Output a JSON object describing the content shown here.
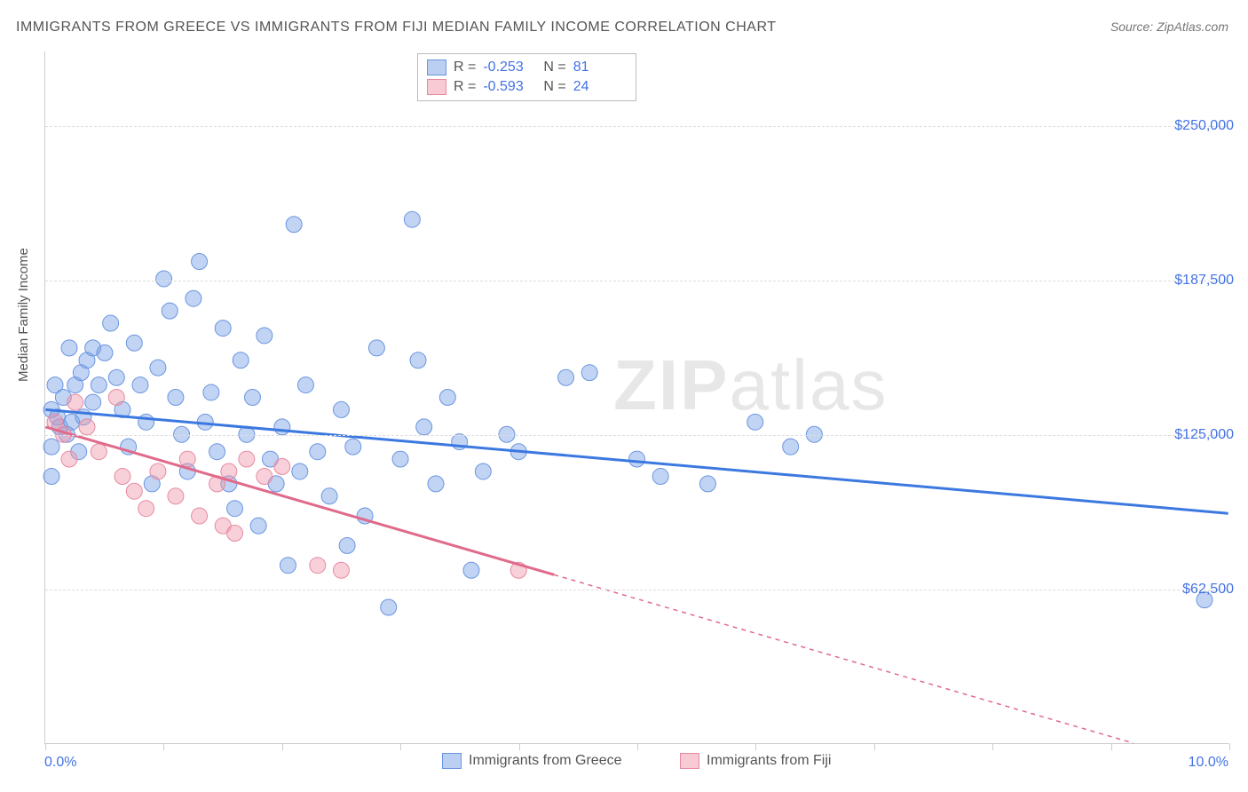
{
  "title": "IMMIGRANTS FROM GREECE VS IMMIGRANTS FROM FIJI MEDIAN FAMILY INCOME CORRELATION CHART",
  "source": "Source: ZipAtlas.com",
  "y_axis_label": "Median Family Income",
  "watermark": {
    "part1": "ZIP",
    "part2": "atlas"
  },
  "chart": {
    "type": "scatter",
    "xlim": [
      0,
      10
    ],
    "ylim": [
      0,
      280000
    ],
    "x_ticks": [
      0,
      1,
      2,
      3,
      4,
      5,
      6,
      7,
      8,
      9,
      10
    ],
    "x_tick_labels": {
      "0": "0.0%",
      "10": "10.0%"
    },
    "y_gridlines": [
      62500,
      125000,
      187500,
      250000
    ],
    "y_tick_labels": [
      "$62,500",
      "$125,000",
      "$187,500",
      "$250,000"
    ],
    "background_color": "#ffffff",
    "grid_color": "#dddddd",
    "axis_color": "#cccccc",
    "label_color": "#4472e4",
    "title_color": "#555555",
    "marker_radius": 9,
    "marker_opacity": 0.45,
    "line_width": 3
  },
  "series": [
    {
      "name": "Immigrants from Greece",
      "color_fill": "rgba(120,160,230,0.45)",
      "color_stroke": "#6a95e0",
      "trend_color": "#3b78e0",
      "R": "-0.253",
      "N": "81",
      "trend_line": {
        "x1": 0,
        "y1": 135000,
        "x2": 10,
        "y2": 93000,
        "solid_to_x": 10
      },
      "points": [
        [
          0.05,
          135000
        ],
        [
          0.1,
          132000
        ],
        [
          0.12,
          128000
        ],
        [
          0.15,
          140000
        ],
        [
          0.18,
          125000
        ],
        [
          0.2,
          160000
        ],
        [
          0.22,
          130000
        ],
        [
          0.25,
          145000
        ],
        [
          0.28,
          118000
        ],
        [
          0.3,
          150000
        ],
        [
          0.32,
          132000
        ],
        [
          0.35,
          155000
        ],
        [
          0.4,
          160000
        ],
        [
          0.45,
          145000
        ],
        [
          0.5,
          158000
        ],
        [
          0.55,
          170000
        ],
        [
          0.6,
          148000
        ],
        [
          0.65,
          135000
        ],
        [
          0.7,
          120000
        ],
        [
          0.75,
          162000
        ],
        [
          0.8,
          145000
        ],
        [
          0.85,
          130000
        ],
        [
          0.9,
          105000
        ],
        [
          0.95,
          152000
        ],
        [
          1.0,
          188000
        ],
        [
          1.05,
          175000
        ],
        [
          1.1,
          140000
        ],
        [
          1.15,
          125000
        ],
        [
          1.2,
          110000
        ],
        [
          1.25,
          180000
        ],
        [
          1.3,
          195000
        ],
        [
          1.35,
          130000
        ],
        [
          1.4,
          142000
        ],
        [
          1.45,
          118000
        ],
        [
          1.5,
          168000
        ],
        [
          1.55,
          105000
        ],
        [
          1.6,
          95000
        ],
        [
          1.65,
          155000
        ],
        [
          1.7,
          125000
        ],
        [
          1.75,
          140000
        ],
        [
          1.8,
          88000
        ],
        [
          1.85,
          165000
        ],
        [
          1.9,
          115000
        ],
        [
          1.95,
          105000
        ],
        [
          2.0,
          128000
        ],
        [
          2.05,
          72000
        ],
        [
          2.1,
          210000
        ],
        [
          2.15,
          110000
        ],
        [
          2.2,
          145000
        ],
        [
          2.3,
          118000
        ],
        [
          2.4,
          100000
        ],
        [
          2.5,
          135000
        ],
        [
          2.55,
          80000
        ],
        [
          2.6,
          120000
        ],
        [
          2.7,
          92000
        ],
        [
          2.8,
          160000
        ],
        [
          2.9,
          55000
        ],
        [
          3.0,
          115000
        ],
        [
          3.1,
          212000
        ],
        [
          3.15,
          155000
        ],
        [
          3.2,
          128000
        ],
        [
          3.3,
          105000
        ],
        [
          3.4,
          140000
        ],
        [
          3.5,
          122000
        ],
        [
          3.6,
          70000
        ],
        [
          3.7,
          110000
        ],
        [
          3.9,
          125000
        ],
        [
          4.0,
          118000
        ],
        [
          4.4,
          148000
        ],
        [
          4.6,
          150000
        ],
        [
          5.0,
          115000
        ],
        [
          5.2,
          108000
        ],
        [
          5.6,
          105000
        ],
        [
          6.0,
          130000
        ],
        [
          6.3,
          120000
        ],
        [
          6.5,
          125000
        ],
        [
          9.8,
          58000
        ],
        [
          0.05,
          120000
        ],
        [
          0.05,
          108000
        ],
        [
          0.08,
          145000
        ],
        [
          0.4,
          138000
        ]
      ]
    },
    {
      "name": "Immigrants from Fiji",
      "color_fill": "rgba(240,150,170,0.45)",
      "color_stroke": "#e889a0",
      "trend_color": "#e06a8a",
      "R": "-0.593",
      "N": "24",
      "trend_line": {
        "x1": 0,
        "y1": 128000,
        "x2": 9.2,
        "y2": 0,
        "solid_to_x": 4.3
      },
      "points": [
        [
          0.08,
          130000
        ],
        [
          0.15,
          125000
        ],
        [
          0.2,
          115000
        ],
        [
          0.25,
          138000
        ],
        [
          0.35,
          128000
        ],
        [
          0.45,
          118000
        ],
        [
          0.6,
          140000
        ],
        [
          0.65,
          108000
        ],
        [
          0.75,
          102000
        ],
        [
          0.85,
          95000
        ],
        [
          0.95,
          110000
        ],
        [
          1.1,
          100000
        ],
        [
          1.2,
          115000
        ],
        [
          1.3,
          92000
        ],
        [
          1.45,
          105000
        ],
        [
          1.5,
          88000
        ],
        [
          1.55,
          110000
        ],
        [
          1.6,
          85000
        ],
        [
          1.7,
          115000
        ],
        [
          1.85,
          108000
        ],
        [
          2.0,
          112000
        ],
        [
          2.3,
          72000
        ],
        [
          2.5,
          70000
        ],
        [
          4.0,
          70000
        ]
      ]
    }
  ],
  "legend": {
    "stats_rows": [
      {
        "swatch": "blue",
        "R": "-0.253",
        "N": "81"
      },
      {
        "swatch": "pink",
        "R": "-0.593",
        "N": "24"
      }
    ],
    "bottom_items": [
      {
        "swatch": "blue",
        "label": "Immigrants from Greece"
      },
      {
        "swatch": "pink",
        "label": "Immigrants from Fiji"
      }
    ]
  }
}
